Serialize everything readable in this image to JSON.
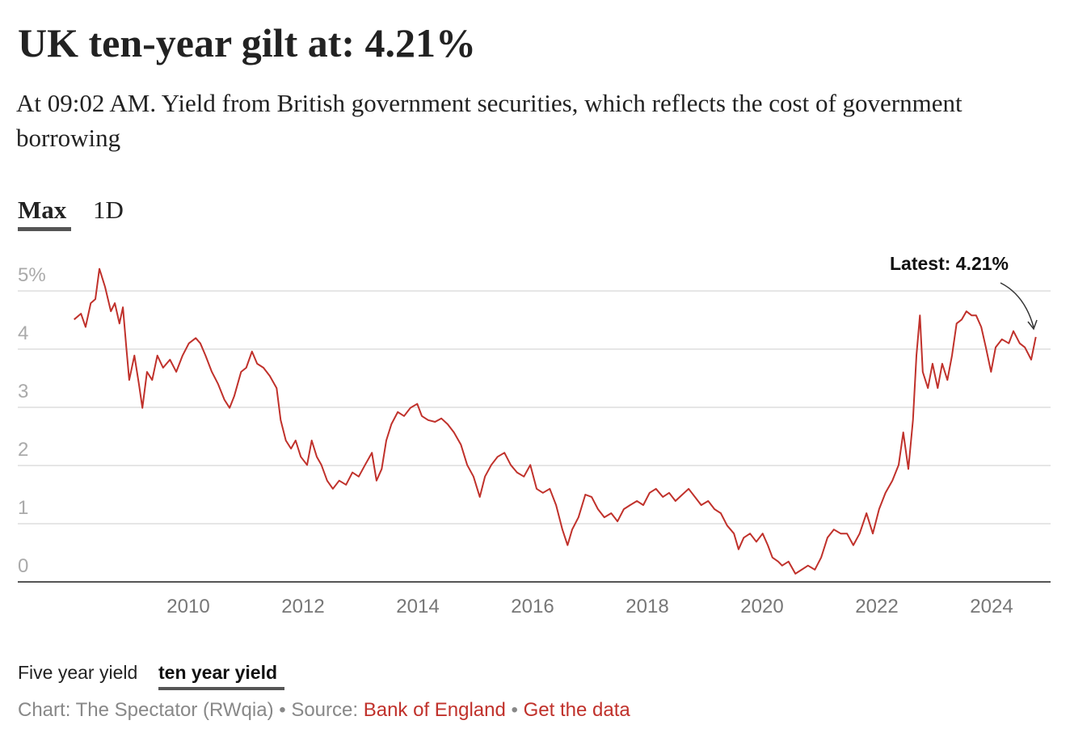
{
  "title": "UK ten-year gilt at: 4.21%",
  "subtitle": "At 09:02 AM. Yield from British government securities, which reflects the cost of government borrowing",
  "tabs": [
    "Max",
    "1D"
  ],
  "chart_data": {
    "type": "line",
    "color": "#c0312b",
    "grid": true,
    "annotation": "Latest: 4.21%",
    "xlim": [
      2007,
      2025
    ],
    "xticks": [
      2010,
      2012,
      2014,
      2016,
      2018,
      2020,
      2022,
      2024
    ],
    "ylim": [
      0,
      5
    ],
    "yticks": [
      0,
      1,
      2,
      3,
      4,
      {
        "value": 5,
        "label": "5%"
      }
    ],
    "x": [
      2008.01,
      2008.13,
      2008.21,
      2008.3,
      2008.38,
      2008.45,
      2008.55,
      2008.65,
      2008.72,
      2008.8,
      2008.86,
      2008.92,
      2008.97,
      2009.06,
      2009.14,
      2009.2,
      2009.28,
      2009.37,
      2009.46,
      2009.56,
      2009.68,
      2009.79,
      2009.9,
      2010.01,
      2010.13,
      2010.21,
      2010.3,
      2010.41,
      2010.52,
      2010.63,
      2010.72,
      2010.8,
      2010.92,
      2011.01,
      2011.11,
      2011.2,
      2011.31,
      2011.42,
      2011.54,
      2011.61,
      2011.7,
      2011.79,
      2011.87,
      2011.96,
      2012.07,
      2012.15,
      2012.24,
      2012.32,
      2012.42,
      2012.52,
      2012.63,
      2012.75,
      2012.86,
      2012.97,
      2013.08,
      2013.2,
      2013.28,
      2013.37,
      2013.45,
      2013.54,
      2013.65,
      2013.76,
      2013.87,
      2013.99,
      2014.07,
      2014.18,
      2014.3,
      2014.41,
      2014.52,
      2014.63,
      2014.75,
      2014.86,
      2014.97,
      2015.08,
      2015.17,
      2015.28,
      2015.39,
      2015.51,
      2015.62,
      2015.73,
      2015.85,
      2015.96,
      2016.07,
      2016.18,
      2016.3,
      2016.41,
      2016.52,
      2016.61,
      2016.69,
      2016.8,
      2016.92,
      2017.03,
      2017.14,
      2017.25,
      2017.37,
      2017.48,
      2017.59,
      2017.7,
      2017.82,
      2017.93,
      2018.04,
      2018.15,
      2018.27,
      2018.38,
      2018.49,
      2018.61,
      2018.72,
      2018.83,
      2018.94,
      2019.06,
      2019.17,
      2019.28,
      2019.39,
      2019.51,
      2019.59,
      2019.68,
      2019.79,
      2019.9,
      2020.01,
      2020.1,
      2020.18,
      2020.28,
      2020.35,
      2020.46,
      2020.58,
      2020.69,
      2020.8,
      2020.92,
      2021.03,
      2021.14,
      2021.25,
      2021.37,
      2021.48,
      2021.59,
      2021.7,
      2021.82,
      2021.93,
      2022.04,
      2022.15,
      2022.27,
      2022.38,
      2022.46,
      2022.55,
      2022.63,
      2022.69,
      2022.75,
      2022.8,
      2022.89,
      2022.97,
      2023.06,
      2023.14,
      2023.23,
      2023.31,
      2023.39,
      2023.48,
      2023.56,
      2023.65,
      2023.73,
      2023.82,
      2023.9,
      2023.99,
      2024.07,
      2024.18,
      2024.3,
      2024.38,
      2024.49,
      2024.58,
      2024.69,
      2024.77
    ],
    "values": [
      4.51,
      4.61,
      4.38,
      4.79,
      4.86,
      5.38,
      5.07,
      4.65,
      4.79,
      4.44,
      4.72,
      4.03,
      3.47,
      3.89,
      3.4,
      2.99,
      3.61,
      3.47,
      3.89,
      3.68,
      3.82,
      3.61,
      3.89,
      4.1,
      4.19,
      4.1,
      3.89,
      3.61,
      3.4,
      3.13,
      2.99,
      3.19,
      3.61,
      3.68,
      3.96,
      3.75,
      3.68,
      3.54,
      3.33,
      2.78,
      2.43,
      2.29,
      2.43,
      2.15,
      2.01,
      2.43,
      2.15,
      2.01,
      1.74,
      1.6,
      1.74,
      1.67,
      1.88,
      1.81,
      2.01,
      2.22,
      1.74,
      1.94,
      2.43,
      2.71,
      2.92,
      2.85,
      2.99,
      3.06,
      2.85,
      2.78,
      2.75,
      2.81,
      2.71,
      2.57,
      2.36,
      2.01,
      1.81,
      1.46,
      1.81,
      2.01,
      2.15,
      2.22,
      2.01,
      1.88,
      1.81,
      2.01,
      1.6,
      1.53,
      1.6,
      1.32,
      0.9,
      0.63,
      0.9,
      1.11,
      1.5,
      1.46,
      1.25,
      1.11,
      1.18,
      1.04,
      1.25,
      1.32,
      1.39,
      1.32,
      1.53,
      1.6,
      1.46,
      1.53,
      1.39,
      1.5,
      1.6,
      1.46,
      1.32,
      1.39,
      1.25,
      1.18,
      0.97,
      0.83,
      0.56,
      0.76,
      0.83,
      0.69,
      0.83,
      0.63,
      0.42,
      0.35,
      0.28,
      0.35,
      0.14,
      0.21,
      0.28,
      0.21,
      0.42,
      0.76,
      0.9,
      0.83,
      0.83,
      0.63,
      0.83,
      1.18,
      0.83,
      1.25,
      1.53,
      1.74,
      2.01,
      2.57,
      1.94,
      2.78,
      3.89,
      4.58,
      3.61,
      3.33,
      3.75,
      3.33,
      3.75,
      3.47,
      3.89,
      4.44,
      4.51,
      4.65,
      4.58,
      4.58,
      4.38,
      4.03,
      3.61,
      4.03,
      4.17,
      4.1,
      4.31,
      4.1,
      4.03,
      3.82,
      4.21
    ]
  },
  "series_toggle": [
    "Five year yield",
    "ten year yield"
  ],
  "footer": {
    "credit": "Chart: The Spectator (RWqia)",
    "separator": "•",
    "source_label": "Source:",
    "source": "Bank of England",
    "data_link": "Get the data"
  }
}
